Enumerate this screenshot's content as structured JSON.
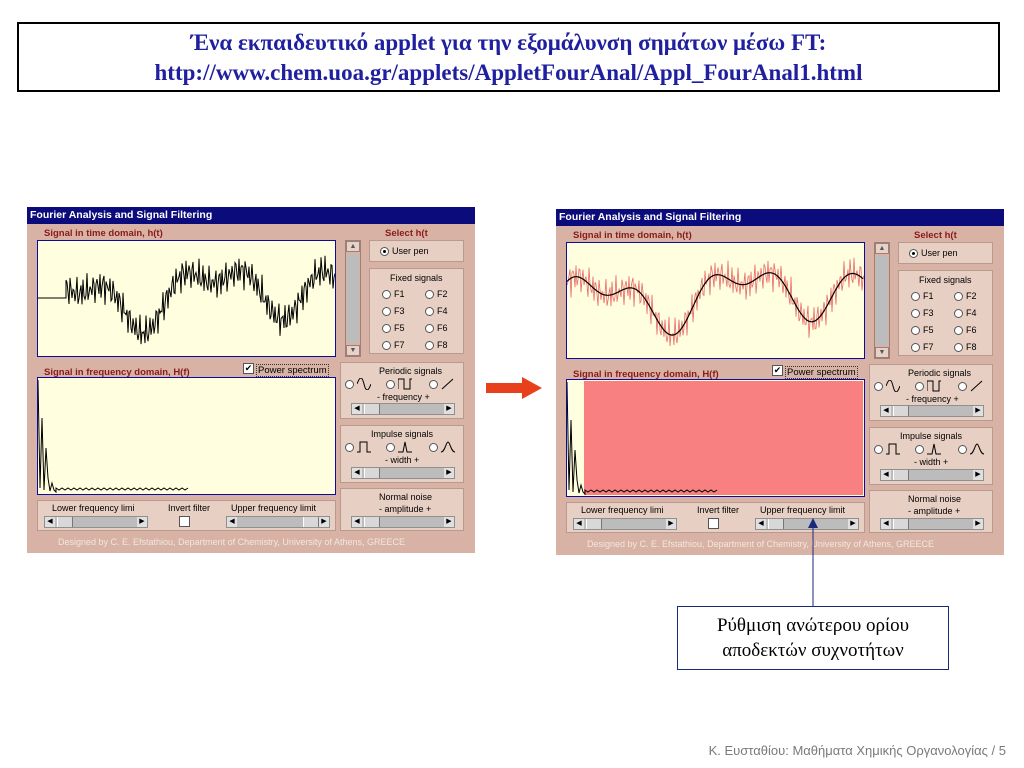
{
  "slide": {
    "title_line1": "Ένα εκπαιδευτικό applet για την εξομάλυνση σημάτων μέσω FT:",
    "title_line2": "http://www.chem.uoa.gr/applets/AppletFourAnal/Appl_FourAnal1.html",
    "callout_line1": "Ρύθμιση ανώτερου ορίου",
    "callout_line2": "αποδεκτών συχνοτήτων",
    "footer": "Κ. Ευσταθίου: Μαθήματα Χημικής Οργανολογίας / 5",
    "arrow_color": "#e8401a"
  },
  "applet": {
    "window_title": "Fourier Analysis and Signal Filtering",
    "time_label": "Signal in time domain, h(t)",
    "freq_label": "Signal in frequency domain, H(f)",
    "select_label": "Select h(t",
    "user_pen": "User pen",
    "fixed_signals": "Fixed signals",
    "fixed": [
      "F1",
      "F2",
      "F3",
      "F4",
      "F5",
      "F6",
      "F7",
      "F8"
    ],
    "power_spectrum": "Power spectrum",
    "periodic_signals": "Periodic signals",
    "frequency": "- frequency +",
    "impulse_signals": "Impulse signals",
    "width": "- width +",
    "normal_noise": "Normal noise",
    "amplitude": "- amplitude +",
    "lower_limit": "Lower frequency limi",
    "invert_filter": "Invert filter",
    "upper_limit": "Upper frequency limit",
    "credit": "Designed by C. E. Efstathiou, Department of Chemistry, University of Athens, GREECE",
    "colors": {
      "titlebar": "#0b0b7c",
      "panel": "#d8b3a5",
      "plot_bg": "#ffffe0",
      "filter_band": "#f98080",
      "smooth_line": "#000000",
      "raw_line": "#e86a6a"
    }
  }
}
